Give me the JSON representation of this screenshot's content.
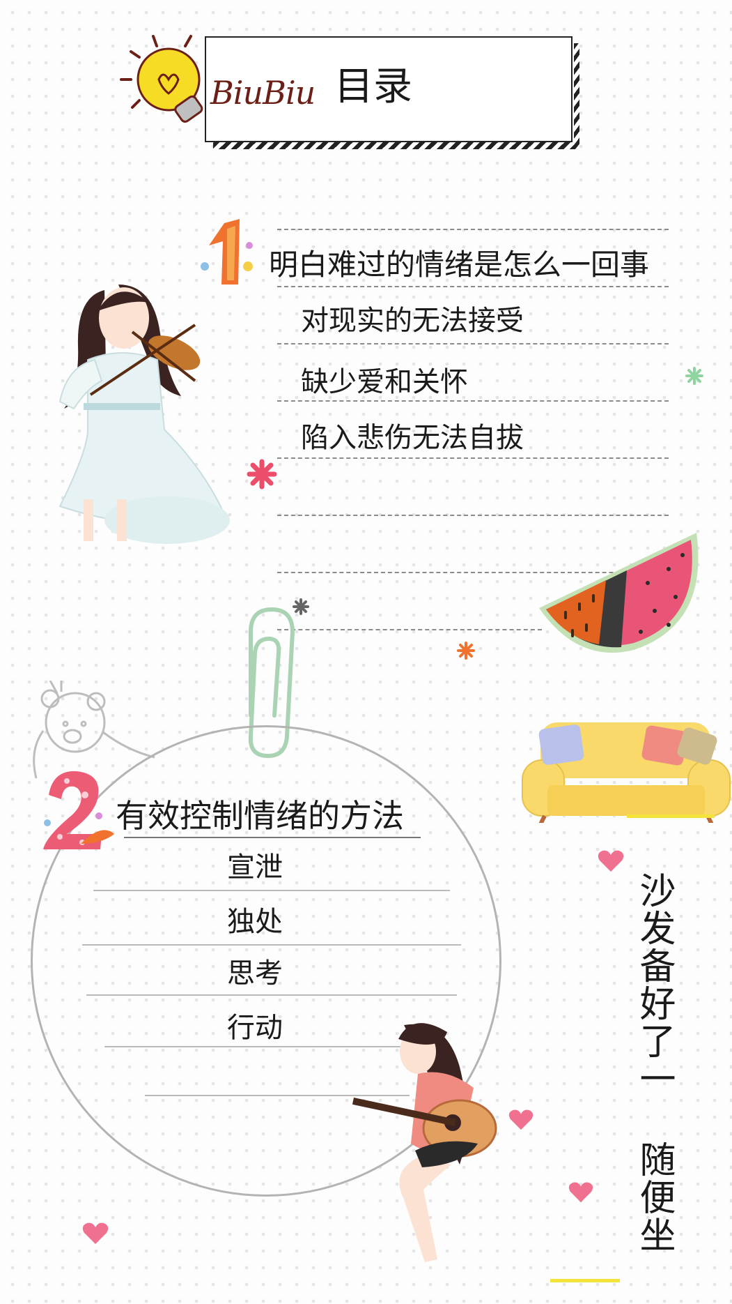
{
  "header": {
    "brand": "BiuBiu",
    "title": "目录"
  },
  "section1": {
    "number": "1",
    "title": "明白难过的情绪是怎么一回事",
    "items": [
      "对现实的无法接受",
      "缺少爱和关怀",
      "陷入悲伤无法自拔"
    ]
  },
  "section2": {
    "number": "2",
    "title": "有效控制情绪的方法",
    "items": [
      "宣泄",
      "独处",
      "思考",
      "行动"
    ]
  },
  "side_text": "沙发备好了一 随便坐",
  "colors": {
    "accent_orange": "#f0722e",
    "accent_pink": "#ec4d6a",
    "sofa_yellow": "#f8d96a",
    "heart": "#f07090",
    "highlight": "#f3e33a"
  }
}
